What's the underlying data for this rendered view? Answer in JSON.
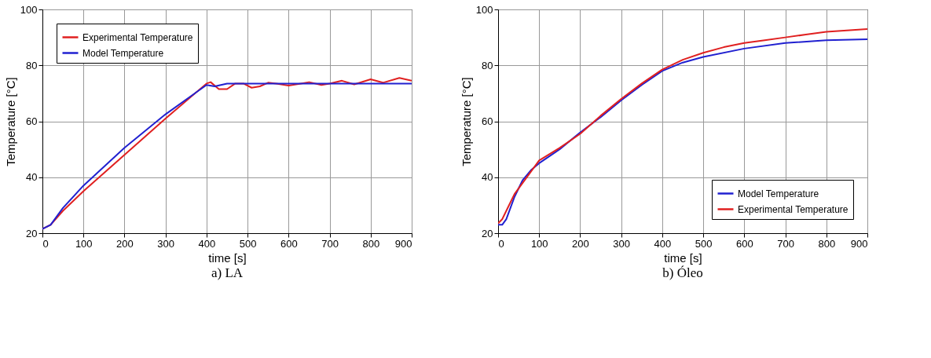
{
  "chart_data": [
    {
      "type": "line",
      "title": "a) LA",
      "xlabel": "time [s]",
      "ylabel": "Temperature [°C]",
      "xlim": [
        0,
        900
      ],
      "ylim": [
        20,
        100
      ],
      "xticks": [
        0,
        100,
        200,
        300,
        400,
        500,
        600,
        700,
        800,
        900
      ],
      "yticks": [
        20,
        40,
        60,
        80,
        100
      ],
      "grid": true,
      "legend": "top left",
      "marker": "none",
      "line_style": "solid",
      "series": [
        {
          "name": "Experimental Temperature",
          "color": "#e02020",
          "x": [
            0,
            20,
            50,
            100,
            200,
            300,
            400,
            410,
            430,
            450,
            470,
            490,
            510,
            530,
            550,
            570,
            600,
            630,
            650,
            680,
            700,
            730,
            760,
            800,
            830,
            870,
            900
          ],
          "values": [
            21.5,
            23,
            28,
            35,
            48,
            61,
            73.5,
            74,
            71.5,
            71.5,
            73.5,
            73.5,
            72,
            72.5,
            73.8,
            73.5,
            72.8,
            73.5,
            74,
            73,
            73.5,
            74.5,
            73.2,
            75,
            73.8,
            75.5,
            74.5
          ]
        },
        {
          "name": "Model Temperature",
          "color": "#2020d0",
          "x": [
            0,
            20,
            50,
            100,
            200,
            300,
            400,
            420,
            450,
            500,
            900
          ],
          "values": [
            21.5,
            23,
            29,
            37,
            50.5,
            62.5,
            73,
            72.5,
            73.5,
            73.5,
            73.5
          ]
        }
      ]
    },
    {
      "type": "line",
      "title": "b) Óleo",
      "xlabel": "time [s]",
      "ylabel": "Temperature [°C]",
      "xlim": [
        0,
        900
      ],
      "ylim": [
        20,
        100
      ],
      "xticks": [
        0,
        100,
        200,
        300,
        400,
        500,
        600,
        700,
        800,
        900
      ],
      "yticks": [
        20,
        40,
        60,
        80,
        100
      ],
      "grid": true,
      "legend": "bottom right",
      "marker": "none",
      "line_style": "solid",
      "series": [
        {
          "name": "Model Temperature",
          "color": "#2020d0",
          "x": [
            0,
            10,
            20,
            40,
            60,
            80,
            100,
            150,
            200,
            250,
            300,
            350,
            400,
            450,
            500,
            600,
            700,
            800,
            900
          ],
          "values": [
            23,
            23,
            25,
            33,
            39,
            42.5,
            45,
            50,
            56,
            61.5,
            67.5,
            73,
            78,
            81,
            83,
            86,
            88,
            89,
            89.3
          ]
        },
        {
          "name": "Experimental Temperature",
          "color": "#e02020",
          "x": [
            0,
            10,
            20,
            40,
            60,
            80,
            100,
            150,
            200,
            250,
            300,
            350,
            400,
            450,
            500,
            550,
            600,
            650,
            700,
            750,
            800,
            850,
            900
          ],
          "values": [
            23.5,
            25,
            28,
            34,
            38,
            42,
            46,
            50.5,
            55.5,
            62,
            68,
            73.5,
            78.5,
            82,
            84.5,
            86.5,
            88,
            89,
            90,
            91,
            92,
            92.5,
            93
          ]
        }
      ]
    }
  ]
}
